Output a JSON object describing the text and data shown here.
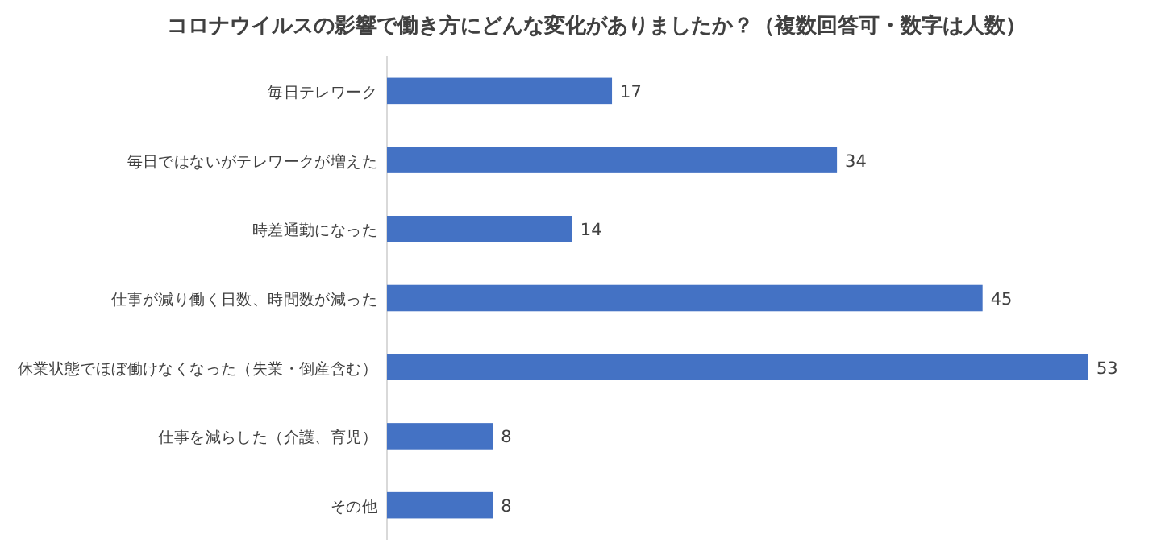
{
  "chart_data": {
    "type": "bar",
    "orientation": "horizontal",
    "title": "コロナウイルスの影響で働き方にどんな変化がありましたか？（複数回答可・数字は人数）",
    "categories": [
      "毎日テレワーク",
      "毎日ではないがテレワークが増えた",
      "時差通勤になった",
      "仕事が減り働く日数、時間数が減った",
      "休業状態でほぼ働けなくなった（失業・倒産含む）",
      "仕事を減らした（介護、育児）",
      "その他"
    ],
    "values": [
      17,
      34,
      14,
      45,
      53,
      8,
      8
    ],
    "color": "#4472c4",
    "data_labels": true
  }
}
